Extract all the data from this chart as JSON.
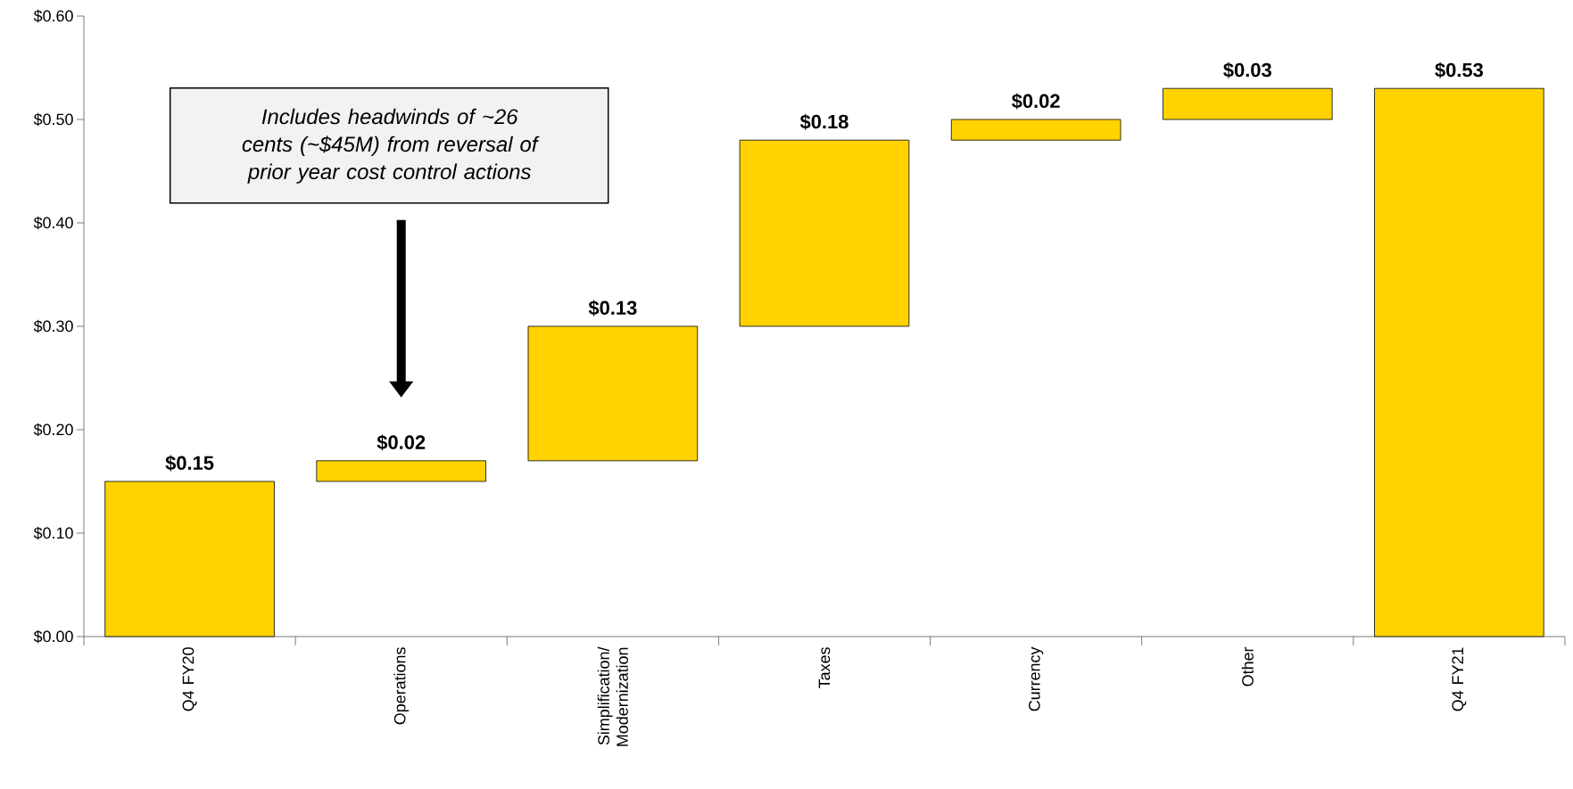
{
  "chart_data": {
    "type": "bar",
    "categories": [
      "Q4 FY20",
      "Operations",
      "Simplification/ Modernization",
      "Taxes",
      "Currency",
      "Other",
      "Q4 FY21"
    ],
    "values": [
      0.15,
      0.02,
      0.13,
      0.18,
      0.02,
      0.03,
      0.53
    ],
    "base": [
      0,
      0.15,
      0.17,
      0.3,
      0.48,
      0.5,
      0
    ],
    "value_labels": [
      "$0.15",
      "$0.02",
      "$0.13",
      "$0.18",
      "$0.02",
      "$0.03",
      "$0.53"
    ],
    "color": "#ffd200",
    "ylim": [
      0,
      0.6
    ],
    "yticks": [
      {
        "value": 0,
        "label": "$0.00"
      },
      {
        "value": 0.1,
        "label": "$0.10"
      },
      {
        "value": 0.2,
        "label": "$0.20"
      },
      {
        "value": 0.3,
        "label": "$0.30"
      },
      {
        "value": 0.4,
        "label": "$0.40"
      },
      {
        "value": 0.5,
        "label": "$0.50"
      },
      {
        "value": 0.6,
        "label": "$0.60"
      }
    ],
    "annotations": [
      "*Includes headwinds of ~26 cents (~$45M) from reversal of prior year cost control actions*"
    ]
  }
}
